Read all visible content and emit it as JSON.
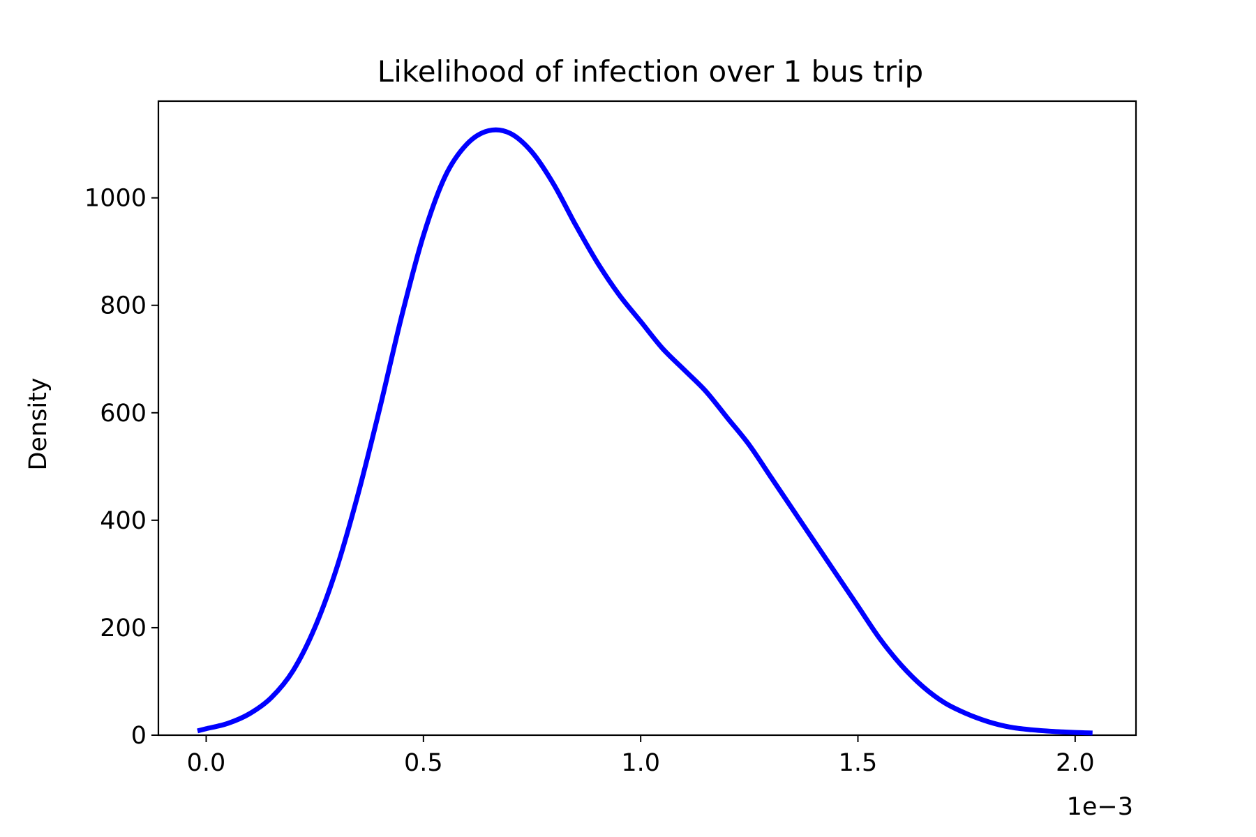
{
  "chart_data": {
    "type": "line",
    "title": "Likelihood of infection over 1 bus trip",
    "xlabel": "",
    "ylabel": "Density",
    "x_offset_label": "1e−3",
    "xlim": [
      -0.00011,
      0.00214
    ],
    "ylim": [
      0,
      1180
    ],
    "x_ticks": [
      0.0,
      0.0005,
      0.001,
      0.0015,
      0.002
    ],
    "x_tick_labels": [
      "0.0",
      "0.5",
      "1.0",
      "1.5",
      "2.0"
    ],
    "y_ticks": [
      0,
      200,
      400,
      600,
      800,
      1000
    ],
    "y_tick_labels": [
      "0",
      "200",
      "400",
      "600",
      "800",
      "1000"
    ],
    "grid": false,
    "series": [
      {
        "color": "#0000ff",
        "x": [
          -2e-05,
          0.0,
          5e-05,
          0.0001,
          0.00015,
          0.0002,
          0.00025,
          0.0003,
          0.00035,
          0.0004,
          0.00045,
          0.0005,
          0.00055,
          0.0006,
          0.00065,
          0.0007,
          0.00075,
          0.0008,
          0.00085,
          0.0009,
          0.00095,
          0.001,
          0.00105,
          0.0011,
          0.00115,
          0.0012,
          0.00125,
          0.0013,
          0.00135,
          0.0014,
          0.00145,
          0.0015,
          0.00155,
          0.0016,
          0.00165,
          0.0017,
          0.00175,
          0.0018,
          0.00185,
          0.0019,
          0.00195,
          0.002,
          0.00204
        ],
        "y": [
          8,
          12,
          22,
          40,
          70,
          120,
          200,
          310,
          450,
          610,
          780,
          930,
          1040,
          1100,
          1125,
          1120,
          1085,
          1025,
          950,
          880,
          820,
          770,
          720,
          680,
          640,
          590,
          540,
          480,
          420,
          360,
          300,
          240,
          180,
          130,
          90,
          60,
          40,
          25,
          15,
          10,
          7,
          5,
          4
        ]
      }
    ]
  }
}
